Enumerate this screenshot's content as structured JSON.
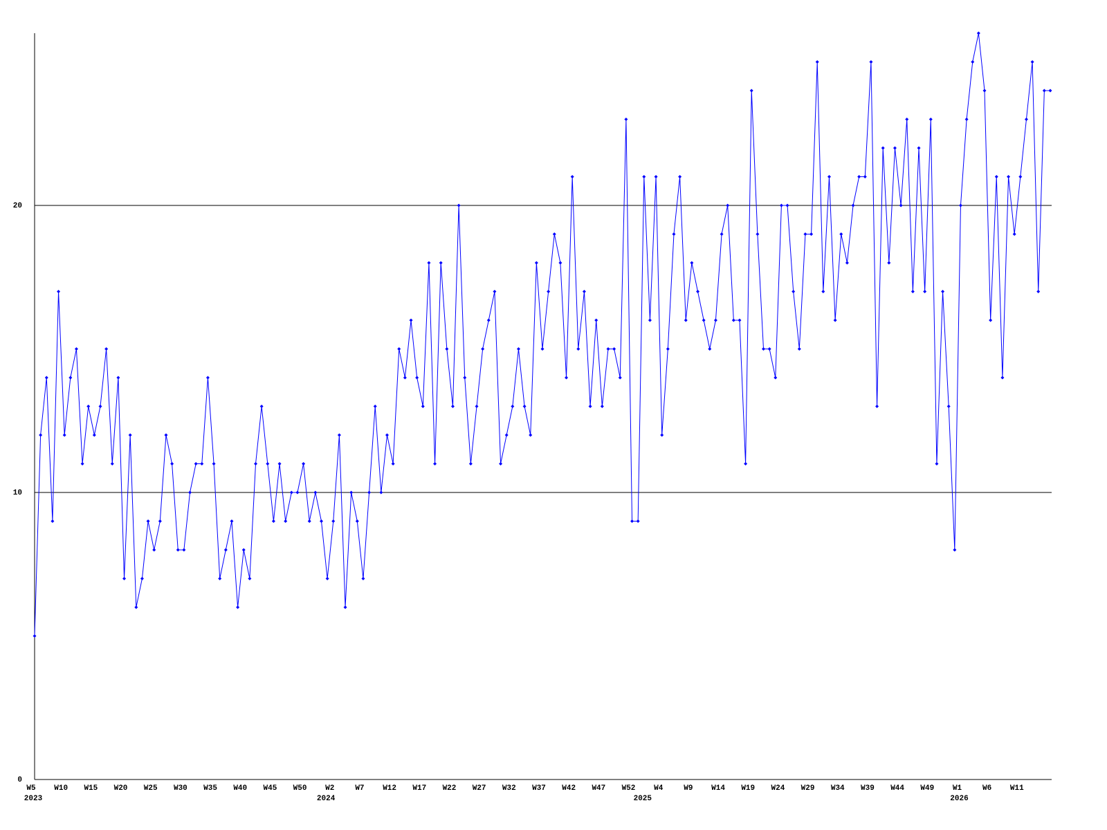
{
  "chart_data": {
    "type": "line",
    "categories": [
      "W5",
      null,
      null,
      null,
      null,
      "W10",
      null,
      null,
      null,
      null,
      "W15",
      null,
      null,
      null,
      null,
      "W20",
      null,
      null,
      null,
      null,
      "W25",
      null,
      null,
      null,
      null,
      "W30",
      null,
      null,
      null,
      null,
      "W35",
      null,
      null,
      null,
      null,
      "W40",
      null,
      null,
      null,
      null,
      "W45",
      null,
      null,
      null,
      null,
      "W50",
      null,
      null,
      null,
      null,
      "W2",
      null,
      null,
      null,
      null,
      "W7",
      null,
      null,
      null,
      null,
      "W12",
      null,
      null,
      null,
      null,
      "W17",
      null,
      null,
      null,
      null,
      "W22",
      null,
      null,
      null,
      null,
      "W27",
      null,
      null,
      null,
      null,
      "W32",
      null,
      null,
      null,
      null,
      "W37",
      null,
      null,
      null,
      null,
      "W42",
      null,
      null,
      null,
      null,
      "W47",
      null,
      null,
      null,
      null,
      "W52",
      null,
      null,
      null,
      null,
      "W4",
      null,
      null,
      null,
      null,
      "W9",
      null,
      null,
      null,
      null,
      "W14",
      null,
      null,
      null,
      null,
      "W19",
      null,
      null,
      null,
      null,
      "W24",
      null,
      null,
      null,
      null,
      "W29",
      null,
      null,
      null,
      null,
      "W34",
      null,
      null,
      null,
      null,
      "W39",
      null,
      null,
      null,
      null,
      "W44",
      null,
      null,
      null,
      null,
      "W49",
      null,
      null,
      null,
      null,
      "W1",
      null,
      null,
      null,
      null,
      "W6",
      null,
      null,
      null,
      null,
      "W11",
      null,
      null,
      null,
      null,
      null
    ],
    "category_years": [
      "2023",
      null,
      null,
      null,
      null,
      null,
      null,
      null,
      null,
      null,
      null,
      null,
      null,
      null,
      null,
      null,
      null,
      null,
      null,
      null,
      null,
      null,
      null,
      null,
      null,
      null,
      null,
      null,
      null,
      null,
      null,
      null,
      null,
      null,
      null,
      null,
      null,
      null,
      null,
      null,
      null,
      null,
      null,
      null,
      null,
      null,
      null,
      null,
      null,
      "2024",
      null,
      null,
      null,
      null,
      null,
      null,
      null,
      null,
      null,
      null,
      null,
      null,
      null,
      null,
      null,
      null,
      null,
      null,
      null,
      null,
      null,
      null,
      null,
      null,
      null,
      null,
      null,
      null,
      null,
      null,
      null,
      null,
      null,
      null,
      null,
      null,
      null,
      null,
      null,
      null,
      null,
      null,
      null,
      null,
      null,
      null,
      null,
      null,
      null,
      null,
      null,
      null,
      "2025",
      null,
      null,
      null,
      null,
      null,
      null,
      null,
      null,
      null,
      null,
      null,
      null,
      null,
      null,
      null,
      null,
      null,
      null,
      null,
      null,
      null,
      null,
      null,
      null,
      null,
      null,
      null,
      null,
      null,
      null,
      null,
      null,
      null,
      null,
      null,
      null,
      null,
      null,
      null,
      null,
      null,
      null,
      null,
      null,
      null,
      null,
      null,
      null,
      null,
      null,
      null,
      null,
      "2026",
      null,
      null,
      null,
      null,
      null,
      null,
      null,
      null,
      null,
      null,
      null,
      null,
      null,
      null,
      null
    ],
    "values": [
      5,
      12,
      14,
      9,
      17,
      12,
      14,
      15,
      11,
      13,
      12,
      13,
      15,
      11,
      14,
      7,
      12,
      6,
      7,
      9,
      8,
      9,
      12,
      11,
      8,
      8,
      10,
      11,
      11,
      14,
      11,
      7,
      8,
      9,
      6,
      8,
      7,
      11,
      13,
      11,
      9,
      11,
      9,
      10,
      10,
      11,
      9,
      10,
      9,
      7,
      9,
      12,
      6,
      10,
      9,
      7,
      10,
      13,
      10,
      12,
      11,
      15,
      14,
      16,
      14,
      13,
      18,
      11,
      18,
      15,
      13,
      20,
      14,
      11,
      13,
      15,
      16,
      17,
      11,
      12,
      13,
      15,
      13,
      12,
      18,
      15,
      17,
      19,
      18,
      14,
      21,
      15,
      17,
      13,
      16,
      13,
      15,
      15,
      14,
      23,
      9,
      9,
      21,
      16,
      21,
      12,
      15,
      19,
      21,
      16,
      18,
      17,
      16,
      15,
      16,
      19,
      20,
      16,
      16,
      11,
      24,
      19,
      15,
      15,
      14,
      20,
      20,
      17,
      15,
      19,
      19,
      25,
      17,
      21,
      16,
      19,
      18,
      20,
      21,
      21,
      25,
      13,
      22,
      18,
      22,
      20,
      23,
      17,
      22,
      17,
      23,
      11,
      17,
      13,
      8,
      20,
      23,
      25,
      26,
      24,
      16,
      21,
      14,
      21,
      19,
      21,
      23,
      25,
      17,
      24,
      24
    ],
    "color": "#0000ff",
    "ylim": [
      0,
      26
    ],
    "yticks": [
      0,
      10,
      20
    ],
    "grid": true
  }
}
